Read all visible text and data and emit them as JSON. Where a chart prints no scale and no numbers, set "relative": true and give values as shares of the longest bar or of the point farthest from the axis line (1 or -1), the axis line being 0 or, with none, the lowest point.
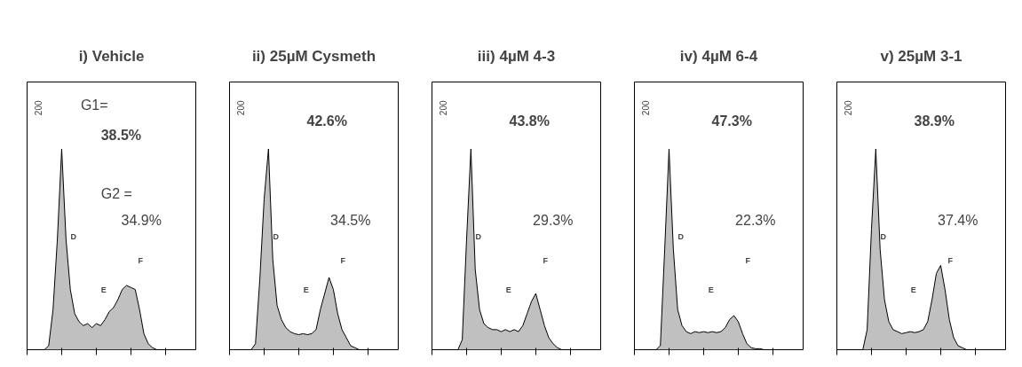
{
  "chart_data": [
    {
      "type": "area",
      "title": "i) Vehicle",
      "relative": true,
      "categories": [
        null,
        null,
        null,
        null,
        null,
        null,
        null,
        null,
        null,
        null,
        null,
        null,
        null,
        null,
        null,
        null,
        null,
        null,
        null,
        null,
        null,
        null,
        null,
        null,
        null,
        null,
        null,
        null,
        null,
        null,
        null,
        null,
        null,
        null,
        null,
        null,
        null,
        null,
        null,
        null
      ],
      "series": [
        {
          "color": "#c0c0c0",
          "values": [
            0,
            0,
            0,
            0,
            0,
            0.02,
            0.2,
            0.55,
            1,
            0.55,
            0.3,
            0.18,
            0.14,
            0.12,
            0.13,
            0.11,
            0.13,
            0.12,
            0.15,
            0.19,
            0.21,
            0.25,
            0.3,
            0.32,
            0.31,
            0.3,
            0.2,
            0.08,
            0.03,
            0.01,
            0,
            0,
            0,
            0,
            0,
            0,
            0,
            0,
            0,
            0
          ]
        }
      ],
      "annotations": [
        "200",
        "G1=",
        "38.5%",
        "G2 =",
        "34.9%",
        "D",
        "E",
        "F"
      ]
    },
    {
      "type": "area",
      "title": "ii) 25µM Cysmeth",
      "relative": true,
      "categories": [
        null,
        null,
        null,
        null,
        null,
        null,
        null,
        null,
        null,
        null,
        null,
        null,
        null,
        null,
        null,
        null,
        null,
        null,
        null,
        null,
        null,
        null,
        null,
        null,
        null,
        null,
        null,
        null,
        null,
        null,
        null,
        null,
        null,
        null,
        null,
        null,
        null,
        null,
        null,
        null
      ],
      "series": [
        {
          "color": "#c0c0c0",
          "values": [
            0,
            0,
            0,
            0,
            0,
            0,
            0.03,
            0.35,
            0.75,
            1,
            0.45,
            0.22,
            0.15,
            0.11,
            0.09,
            0.08,
            0.075,
            0.08,
            0.075,
            0.08,
            0.1,
            0.2,
            0.28,
            0.36,
            0.3,
            0.18,
            0.1,
            0.06,
            0.02,
            0.01,
            0,
            0,
            0,
            0,
            0,
            0,
            0,
            0,
            0,
            0
          ]
        }
      ],
      "annotations": [
        "200",
        "42.6%",
        "34.5%",
        "D",
        "E",
        "F"
      ]
    },
    {
      "type": "area",
      "title": "iii) 4µM 4-3",
      "relative": true,
      "categories": [
        null,
        null,
        null,
        null,
        null,
        null,
        null,
        null,
        null,
        null,
        null,
        null,
        null,
        null,
        null,
        null,
        null,
        null,
        null,
        null,
        null,
        null,
        null,
        null,
        null,
        null,
        null,
        null,
        null,
        null,
        null,
        null,
        null,
        null,
        null,
        null,
        null,
        null,
        null,
        null
      ],
      "series": [
        {
          "color": "#c0c0c0",
          "values": [
            0,
            0,
            0,
            0,
            0,
            0,
            0,
            0.05,
            0.55,
            1,
            0.4,
            0.2,
            0.13,
            0.11,
            0.1,
            0.1,
            0.09,
            0.1,
            0.09,
            0.1,
            0.09,
            0.12,
            0.18,
            0.24,
            0.28,
            0.2,
            0.12,
            0.06,
            0.03,
            0.01,
            0,
            0,
            0,
            0,
            0,
            0,
            0,
            0,
            0,
            0
          ]
        }
      ],
      "annotations": [
        "200",
        "43.8%",
        "29.3%",
        "D",
        "E",
        "F"
      ]
    },
    {
      "type": "area",
      "title": "iv) 4µM 6-4",
      "relative": true,
      "categories": [
        null,
        null,
        null,
        null,
        null,
        null,
        null,
        null,
        null,
        null,
        null,
        null,
        null,
        null,
        null,
        null,
        null,
        null,
        null,
        null,
        null,
        null,
        null,
        null,
        null,
        null,
        null,
        null,
        null,
        null,
        null,
        null,
        null,
        null,
        null,
        null,
        null,
        null,
        null,
        null
      ],
      "series": [
        {
          "color": "#c0c0c0",
          "values": [
            0,
            0,
            0,
            0,
            0,
            0,
            0.02,
            0.5,
            1,
            0.5,
            0.2,
            0.12,
            0.09,
            0.08,
            0.09,
            0.085,
            0.09,
            0.085,
            0.09,
            0.085,
            0.09,
            0.11,
            0.15,
            0.17,
            0.14,
            0.08,
            0.03,
            0.01,
            0.005,
            0.005,
            0,
            0,
            0,
            0,
            0,
            0,
            0,
            0,
            0,
            0
          ]
        }
      ],
      "annotations": [
        "200",
        "47.3%",
        "22.3%",
        "D",
        "E",
        "F"
      ]
    },
    {
      "type": "area",
      "title": "v) 25µM 3-1",
      "relative": true,
      "categories": [
        null,
        null,
        null,
        null,
        null,
        null,
        null,
        null,
        null,
        null,
        null,
        null,
        null,
        null,
        null,
        null,
        null,
        null,
        null,
        null,
        null,
        null,
        null,
        null,
        null,
        null,
        null,
        null,
        null,
        null,
        null,
        null,
        null,
        null,
        null,
        null,
        null,
        null,
        null,
        null
      ],
      "series": [
        {
          "color": "#c0c0c0",
          "values": [
            0,
            0,
            0,
            0,
            0,
            0,
            0,
            0.1,
            0.6,
            1,
            0.5,
            0.25,
            0.14,
            0.1,
            0.09,
            0.08,
            0.085,
            0.09,
            0.085,
            0.09,
            0.1,
            0.14,
            0.25,
            0.38,
            0.42,
            0.3,
            0.15,
            0.06,
            0.02,
            0.01,
            0,
            0,
            0,
            0,
            0,
            0,
            0,
            0,
            0,
            0
          ]
        }
      ],
      "annotations": [
        "200",
        "38.9%",
        "37.4%",
        "D",
        "E",
        "F"
      ]
    }
  ]
}
